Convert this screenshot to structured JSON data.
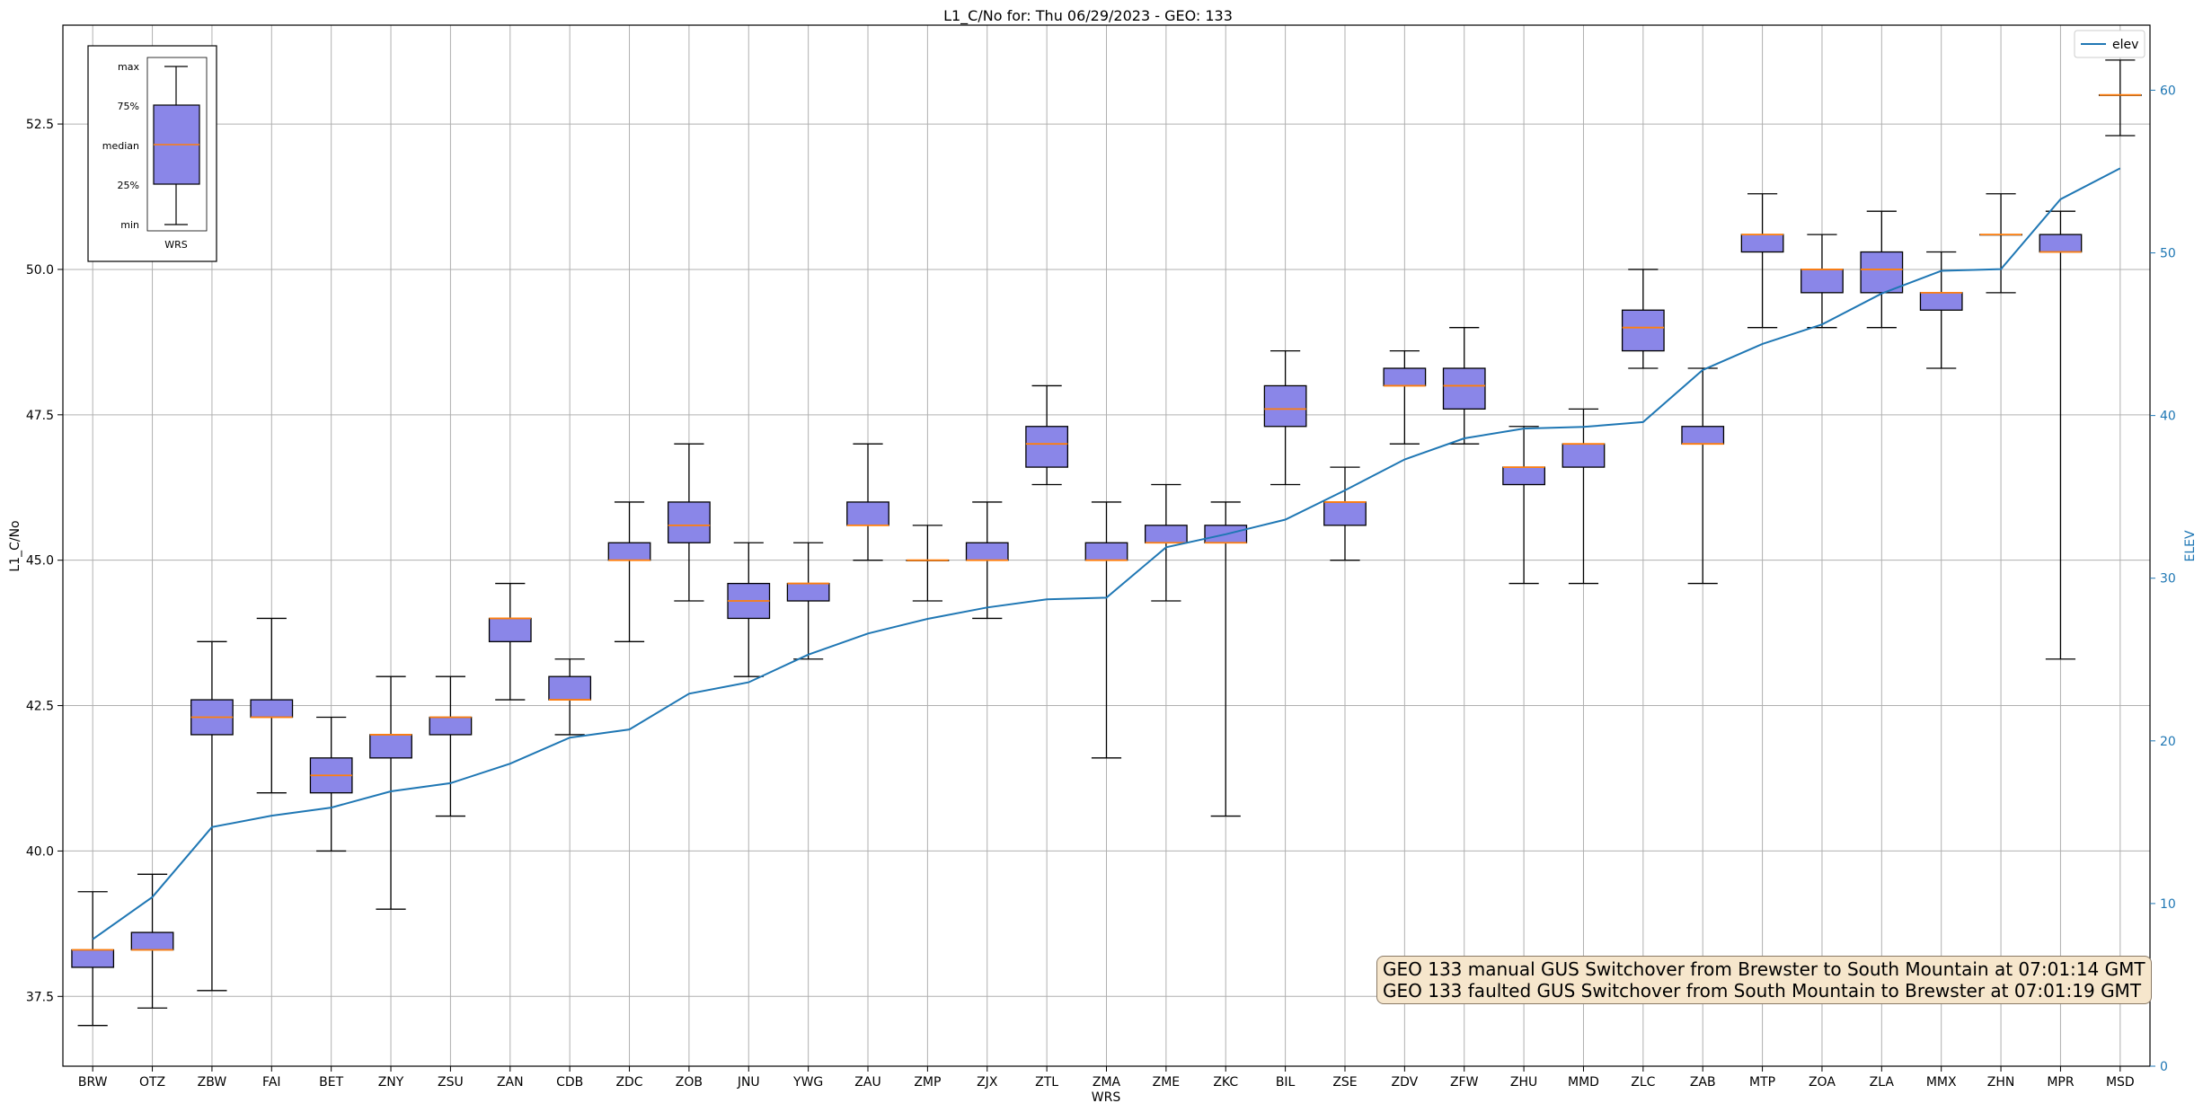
{
  "chart_data": {
    "type": "boxplot",
    "title": "L1_C/No for: Thu 06/29/2023 - GEO: 133",
    "xlabel": "WRS",
    "ylabel": "L1_C/No",
    "y2label": "ELEV",
    "ylim": [
      36.3,
      54.2
    ],
    "y2lim": [
      0,
      64
    ],
    "yticks": [
      "37.5",
      "40.0",
      "42.5",
      "45.0",
      "47.5",
      "50.0",
      "52.5"
    ],
    "y2ticks": [
      "0",
      "10",
      "20",
      "30",
      "40",
      "50",
      "60"
    ],
    "grid": true,
    "legend": {
      "position": "top-right",
      "entries": [
        "elev"
      ]
    },
    "colors": {
      "box_fill": "#8a86e8",
      "median": "#ff7f0e",
      "elev_line": "#1f77b4"
    },
    "categories": [
      "BRW",
      "OTZ",
      "ZBW",
      "FAI",
      "BET",
      "ZNY",
      "ZSU",
      "ZAN",
      "CDB",
      "ZDC",
      "ZOB",
      "JNU",
      "YWG",
      "ZAU",
      "ZMP",
      "ZJX",
      "ZTL",
      "ZMA",
      "ZME",
      "ZKC",
      "BIL",
      "ZSE",
      "ZDV",
      "ZFW",
      "ZHU",
      "MMD",
      "ZLC",
      "ZAB",
      "MTP",
      "ZOA",
      "ZLA",
      "MMX",
      "ZHN",
      "MPR",
      "MSD"
    ],
    "boxes": [
      {
        "min": 37.0,
        "q1": 38.0,
        "median": 38.3,
        "q3": 38.3,
        "max": 39.3
      },
      {
        "min": 37.3,
        "q1": 38.3,
        "median": 38.3,
        "q3": 38.6,
        "max": 39.6
      },
      {
        "min": 37.6,
        "q1": 42.0,
        "median": 42.3,
        "q3": 42.6,
        "max": 43.6
      },
      {
        "min": 41.0,
        "q1": 42.3,
        "median": 42.3,
        "q3": 42.6,
        "max": 44.0
      },
      {
        "min": 40.0,
        "q1": 41.0,
        "median": 41.3,
        "q3": 41.6,
        "max": 42.3
      },
      {
        "min": 39.0,
        "q1": 41.6,
        "median": 42.0,
        "q3": 42.0,
        "max": 43.0
      },
      {
        "min": 40.6,
        "q1": 42.0,
        "median": 42.3,
        "q3": 42.3,
        "max": 43.0
      },
      {
        "min": 42.6,
        "q1": 43.6,
        "median": 44.0,
        "q3": 44.0,
        "max": 44.6
      },
      {
        "min": 42.0,
        "q1": 42.6,
        "median": 42.6,
        "q3": 43.0,
        "max": 43.3
      },
      {
        "min": 43.6,
        "q1": 45.0,
        "median": 45.0,
        "q3": 45.3,
        "max": 46.0
      },
      {
        "min": 44.3,
        "q1": 45.3,
        "median": 45.6,
        "q3": 46.0,
        "max": 47.0
      },
      {
        "min": 43.0,
        "q1": 44.0,
        "median": 44.3,
        "q3": 44.6,
        "max": 45.3
      },
      {
        "min": 43.3,
        "q1": 44.3,
        "median": 44.6,
        "q3": 44.6,
        "max": 45.3
      },
      {
        "min": 45.0,
        "q1": 45.6,
        "median": 45.6,
        "q3": 46.0,
        "max": 47.0
      },
      {
        "min": 44.3,
        "q1": 45.0,
        "median": 45.0,
        "q3": 45.0,
        "max": 45.6
      },
      {
        "min": 44.0,
        "q1": 45.0,
        "median": 45.0,
        "q3": 45.3,
        "max": 46.0
      },
      {
        "min": 46.3,
        "q1": 46.6,
        "median": 47.0,
        "q3": 47.3,
        "max": 48.0
      },
      {
        "min": 41.6,
        "q1": 45.0,
        "median": 45.0,
        "q3": 45.3,
        "max": 46.0
      },
      {
        "min": 44.3,
        "q1": 45.3,
        "median": 45.3,
        "q3": 45.6,
        "max": 46.3
      },
      {
        "min": 40.6,
        "q1": 45.3,
        "median": 45.3,
        "q3": 45.6,
        "max": 46.0
      },
      {
        "min": 46.3,
        "q1": 47.3,
        "median": 47.6,
        "q3": 48.0,
        "max": 48.6
      },
      {
        "min": 45.0,
        "q1": 45.6,
        "median": 46.0,
        "q3": 46.0,
        "max": 46.6
      },
      {
        "min": 47.0,
        "q1": 48.0,
        "median": 48.0,
        "q3": 48.3,
        "max": 48.6
      },
      {
        "min": 47.0,
        "q1": 47.6,
        "median": 48.0,
        "q3": 48.3,
        "max": 49.0
      },
      {
        "min": 44.6,
        "q1": 46.3,
        "median": 46.6,
        "q3": 46.6,
        "max": 47.3
      },
      {
        "min": 44.6,
        "q1": 46.6,
        "median": 47.0,
        "q3": 47.0,
        "max": 47.6
      },
      {
        "min": 48.3,
        "q1": 48.6,
        "median": 49.0,
        "q3": 49.3,
        "max": 50.0
      },
      {
        "min": 44.6,
        "q1": 47.0,
        "median": 47.0,
        "q3": 47.3,
        "max": 48.3
      },
      {
        "min": 49.0,
        "q1": 50.3,
        "median": 50.6,
        "q3": 50.6,
        "max": 51.3
      },
      {
        "min": 49.0,
        "q1": 49.6,
        "median": 50.0,
        "q3": 50.0,
        "max": 50.6
      },
      {
        "min": 49.0,
        "q1": 49.6,
        "median": 50.0,
        "q3": 50.3,
        "max": 51.0
      },
      {
        "min": 48.3,
        "q1": 49.3,
        "median": 49.6,
        "q3": 49.6,
        "max": 50.3
      },
      {
        "min": 49.6,
        "q1": 50.6,
        "median": 50.6,
        "q3": 50.6,
        "max": 51.3
      },
      {
        "min": 43.3,
        "q1": 50.3,
        "median": 50.3,
        "q3": 50.6,
        "max": 51.0
      },
      {
        "min": 52.3,
        "q1": 53.0,
        "median": 53.0,
        "q3": 53.0,
        "max": 53.6
      }
    ],
    "elev_series": {
      "name": "elev",
      "values": [
        7.8,
        10.4,
        14.7,
        15.4,
        15.9,
        16.9,
        17.4,
        18.6,
        20.2,
        20.7,
        22.9,
        23.6,
        25.3,
        26.6,
        27.5,
        28.2,
        28.7,
        28.8,
        31.9,
        32.7,
        33.6,
        35.4,
        37.3,
        38.6,
        39.2,
        39.3,
        39.6,
        42.8,
        44.4,
        45.6,
        47.5,
        48.9,
        49.0,
        53.3,
        55.2
      ]
    },
    "inset_legend": {
      "labels": [
        "max",
        "75%",
        "median",
        "25%",
        "min"
      ],
      "category": "WRS"
    },
    "annotation": [
      "GEO 133 manual GUS Switchover from Brewster to South Mountain at 07:01:14 GMT",
      "GEO 133 faulted GUS Switchover from South Mountain to Brewster at 07:01:19 GMT"
    ]
  }
}
